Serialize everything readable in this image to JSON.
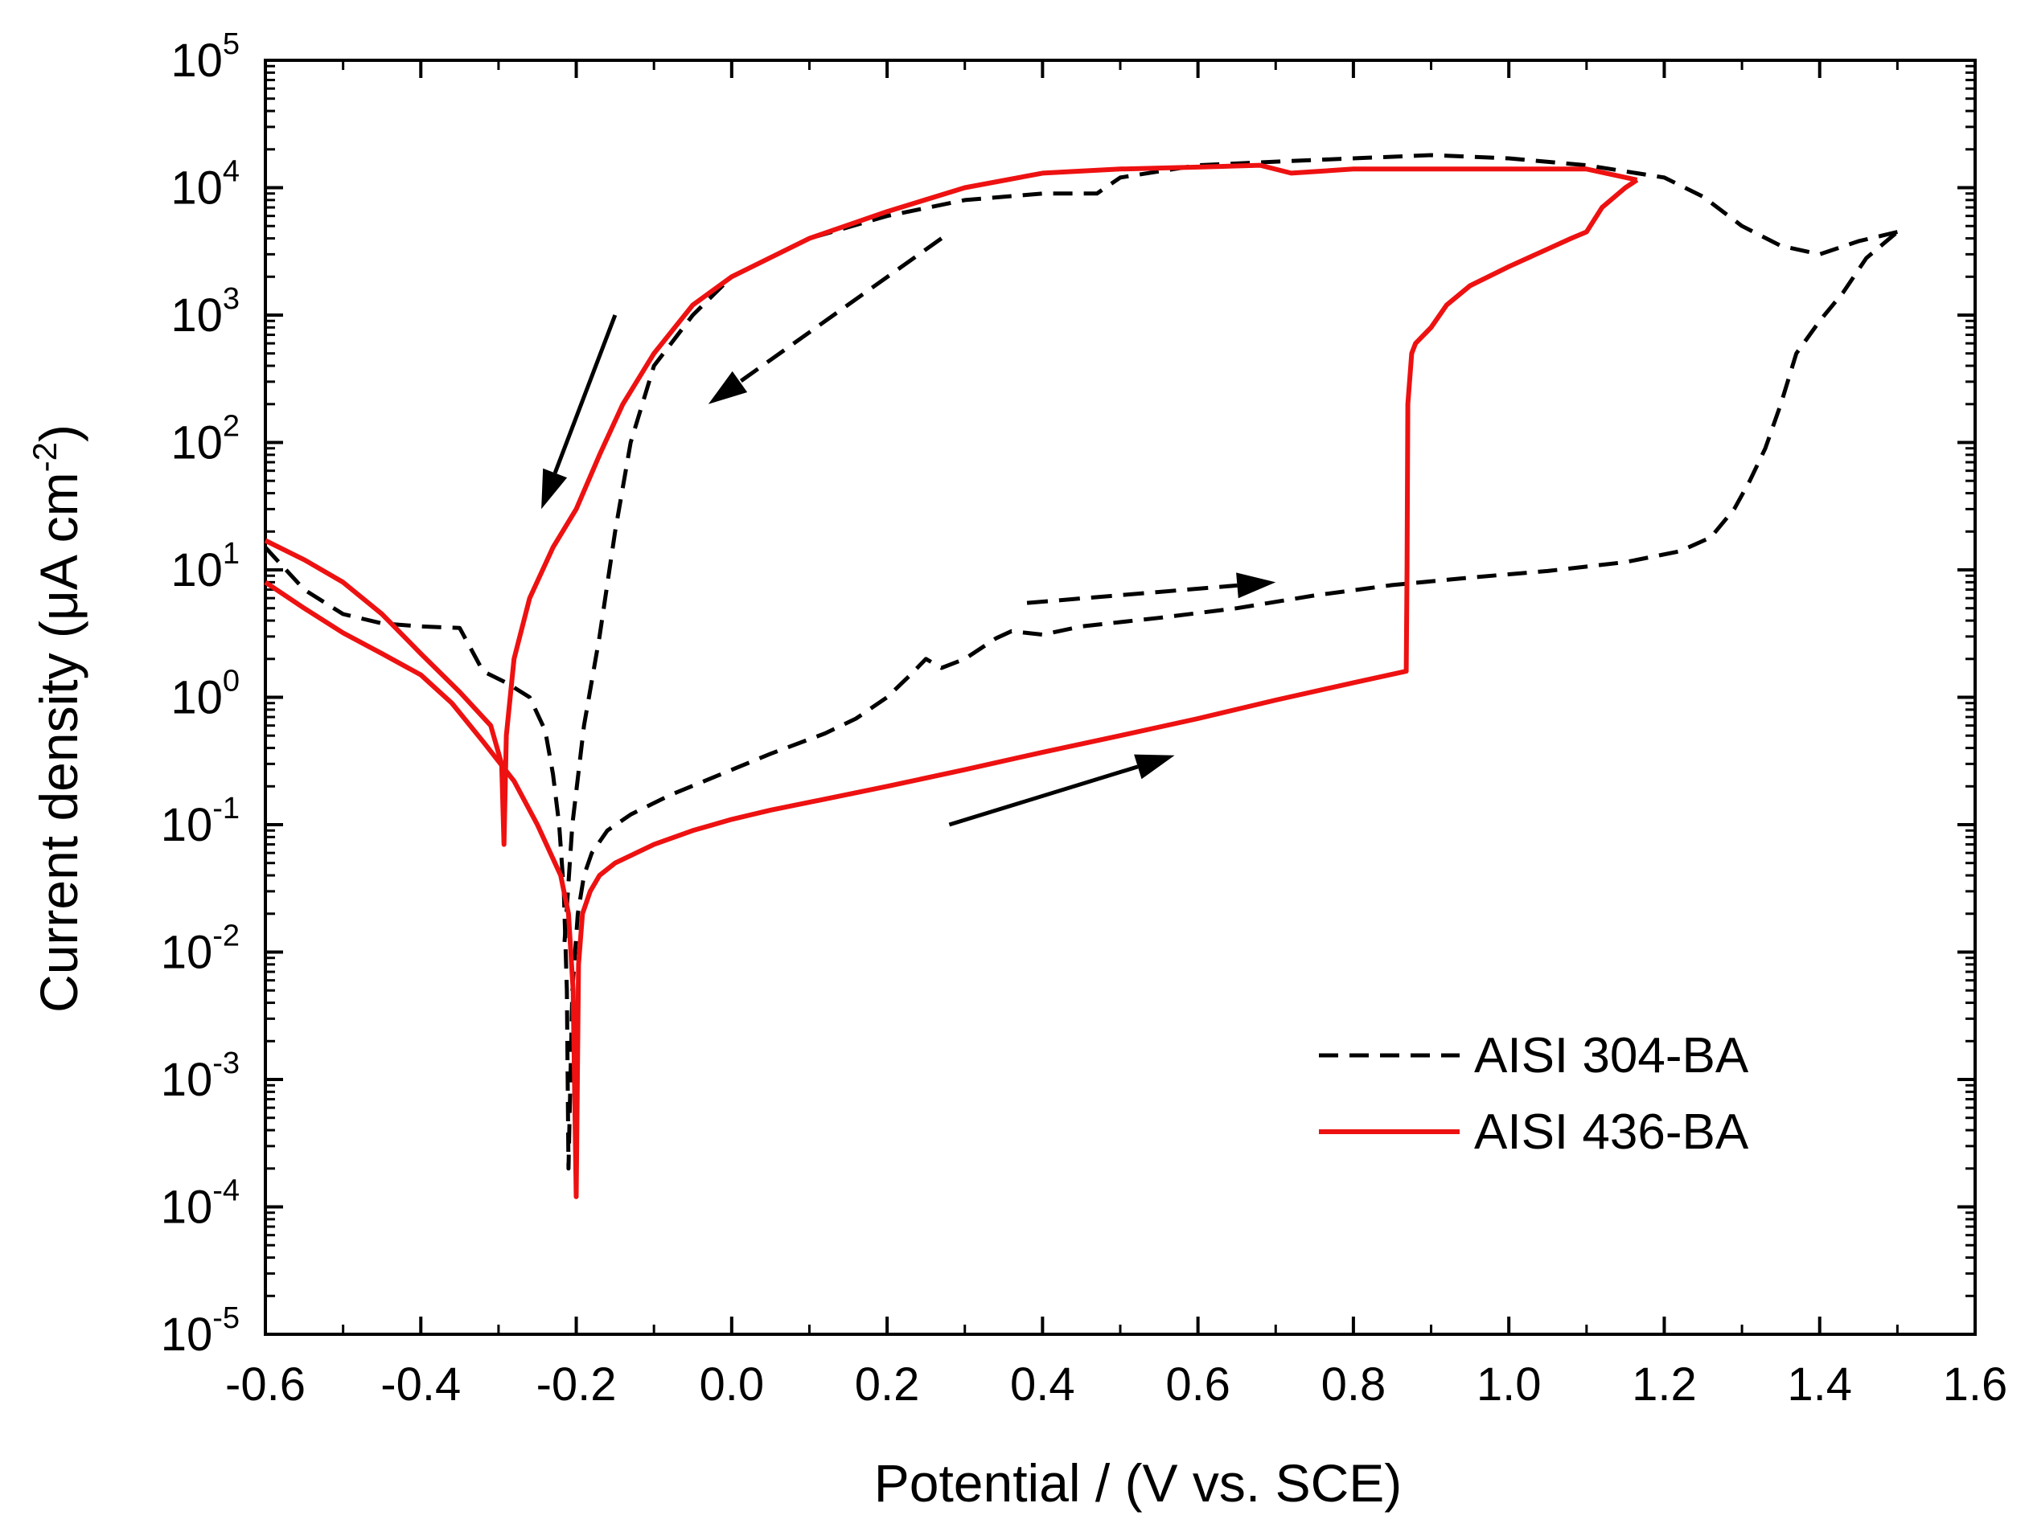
{
  "chart_data": {
    "type": "line",
    "title": "",
    "xlabel": "Potential / (V vs. SCE)",
    "ylabel": "Current density (μA cm",
    "ylabel_sup": "-2",
    "ylabel_close": ")",
    "xlim": [
      -0.6,
      1.6
    ],
    "ylim_log10": [
      -5,
      5
    ],
    "yscale": "log",
    "grid": false,
    "legend_position": "bottom-right",
    "x_ticks": [
      {
        "value": -0.6,
        "label": "-0.6"
      },
      {
        "value": -0.4,
        "label": "-0.4"
      },
      {
        "value": -0.2,
        "label": "-0.2"
      },
      {
        "value": 0.0,
        "label": "0.0"
      },
      {
        "value": 0.2,
        "label": "0.2"
      },
      {
        "value": 0.4,
        "label": "0.4"
      },
      {
        "value": 0.6,
        "label": "0.6"
      },
      {
        "value": 0.8,
        "label": "0.8"
      },
      {
        "value": 1.0,
        "label": "1.0"
      },
      {
        "value": 1.2,
        "label": "1.2"
      },
      {
        "value": 1.4,
        "label": "1.4"
      },
      {
        "value": 1.6,
        "label": "1.6"
      }
    ],
    "y_ticks": [
      {
        "exp": 5,
        "base": "10",
        "sup": "5"
      },
      {
        "exp": 4,
        "base": "10",
        "sup": "4"
      },
      {
        "exp": 3,
        "base": "10",
        "sup": "3"
      },
      {
        "exp": 2,
        "base": "10",
        "sup": "2"
      },
      {
        "exp": 1,
        "base": "10",
        "sup": "1"
      },
      {
        "exp": 0,
        "base": "10",
        "sup": "0"
      },
      {
        "exp": -1,
        "base": "10",
        "sup": "-1"
      },
      {
        "exp": -2,
        "base": "10",
        "sup": "-2"
      },
      {
        "exp": -3,
        "base": "10",
        "sup": "-3"
      },
      {
        "exp": -4,
        "base": "10",
        "sup": "-4"
      },
      {
        "exp": -5,
        "base": "10",
        "sup": "-5"
      }
    ],
    "series": [
      {
        "name": "AISI 304-BA",
        "color": "#000000",
        "style": "dashed",
        "forward": [
          [
            -0.6,
            15
          ],
          [
            -0.55,
            7
          ],
          [
            -0.5,
            4.5
          ],
          [
            -0.45,
            3.8
          ],
          [
            -0.4,
            3.6
          ],
          [
            -0.35,
            3.5
          ],
          [
            -0.32,
            1.6
          ],
          [
            -0.29,
            1.3
          ],
          [
            -0.26,
            1.0
          ],
          [
            -0.24,
            0.55
          ],
          [
            -0.23,
            0.25
          ],
          [
            -0.222,
            0.1
          ],
          [
            -0.216,
            0.03
          ],
          [
            -0.212,
            0.005
          ],
          [
            -0.21,
            0.0002
          ],
          [
            -0.205,
            0.005
          ],
          [
            -0.198,
            0.02
          ],
          [
            -0.19,
            0.04
          ],
          [
            -0.18,
            0.06
          ],
          [
            -0.16,
            0.09
          ],
          [
            -0.13,
            0.12
          ],
          [
            -0.08,
            0.17
          ],
          [
            -0.02,
            0.24
          ],
          [
            0.05,
            0.36
          ],
          [
            0.12,
            0.52
          ],
          [
            0.16,
            0.68
          ],
          [
            0.2,
            1.0
          ],
          [
            0.23,
            1.5
          ],
          [
            0.25,
            2.0
          ],
          [
            0.27,
            1.7
          ],
          [
            0.3,
            2.0
          ],
          [
            0.34,
            2.9
          ],
          [
            0.36,
            3.3
          ],
          [
            0.4,
            3.1
          ],
          [
            0.45,
            3.6
          ],
          [
            0.55,
            4.2
          ],
          [
            0.65,
            5.0
          ],
          [
            0.75,
            6.3
          ],
          [
            0.85,
            7.6
          ],
          [
            0.95,
            8.7
          ],
          [
            1.05,
            9.8
          ],
          [
            1.15,
            11.5
          ],
          [
            1.22,
            14
          ],
          [
            1.26,
            18
          ],
          [
            1.29,
            30
          ],
          [
            1.31,
            50
          ],
          [
            1.33,
            90
          ],
          [
            1.35,
            200
          ],
          [
            1.37,
            500
          ],
          [
            1.4,
            900
          ],
          [
            1.43,
            1500
          ],
          [
            1.46,
            2800
          ],
          [
            1.5,
            4500
          ]
        ],
        "reverse": [
          [
            1.5,
            4500
          ],
          [
            1.48,
            4200
          ],
          [
            1.45,
            3800
          ],
          [
            1.4,
            3000
          ],
          [
            1.35,
            3500
          ],
          [
            1.3,
            5000
          ],
          [
            1.25,
            8500
          ],
          [
            1.2,
            12000
          ],
          [
            1.1,
            15000
          ],
          [
            1.0,
            17000
          ],
          [
            0.9,
            18000
          ],
          [
            0.8,
            17000
          ],
          [
            0.7,
            16000
          ],
          [
            0.6,
            15000
          ],
          [
            0.5,
            12000
          ],
          [
            0.47,
            9000
          ],
          [
            0.4,
            9000
          ],
          [
            0.3,
            8000
          ],
          [
            0.2,
            6000
          ],
          [
            0.1,
            4000
          ],
          [
            0.0,
            2000
          ],
          [
            -0.05,
            1000
          ],
          [
            -0.1,
            400
          ],
          [
            -0.13,
            100
          ],
          [
            -0.15,
            20
          ],
          [
            -0.17,
            3
          ],
          [
            -0.19,
            0.6
          ],
          [
            -0.205,
            0.1
          ],
          [
            -0.215,
            0.012
          ]
        ]
      },
      {
        "name": "AISI 436-BA",
        "color": "#ee1111",
        "style": "solid",
        "forward": [
          [
            -0.6,
            8
          ],
          [
            -0.55,
            5
          ],
          [
            -0.5,
            3.2
          ],
          [
            -0.45,
            2.2
          ],
          [
            -0.4,
            1.5
          ],
          [
            -0.36,
            0.9
          ],
          [
            -0.32,
            0.45
          ],
          [
            -0.28,
            0.22
          ],
          [
            -0.25,
            0.1
          ],
          [
            -0.22,
            0.04
          ],
          [
            -0.21,
            0.02
          ],
          [
            -0.204,
            0.005
          ],
          [
            -0.2,
            0.00012
          ],
          [
            -0.197,
            0.008
          ],
          [
            -0.192,
            0.02
          ],
          [
            -0.182,
            0.03
          ],
          [
            -0.17,
            0.04
          ],
          [
            -0.15,
            0.05
          ],
          [
            -0.1,
            0.07
          ],
          [
            -0.05,
            0.09
          ],
          [
            0.0,
            0.11
          ],
          [
            0.05,
            0.13
          ],
          [
            0.1,
            0.15
          ],
          [
            0.2,
            0.2
          ],
          [
            0.3,
            0.27
          ],
          [
            0.4,
            0.37
          ],
          [
            0.5,
            0.5
          ],
          [
            0.6,
            0.68
          ],
          [
            0.7,
            0.95
          ],
          [
            0.8,
            1.3
          ],
          [
            0.868,
            1.6
          ],
          [
            0.869,
            10
          ],
          [
            0.87,
            200
          ],
          [
            0.875,
            500
          ],
          [
            0.88,
            600
          ],
          [
            0.9,
            800
          ],
          [
            0.92,
            1200
          ],
          [
            0.95,
            1700
          ],
          [
            1.0,
            2400
          ],
          [
            1.05,
            3300
          ],
          [
            1.08,
            4000
          ],
          [
            1.1,
            4500
          ],
          [
            1.12,
            7000
          ],
          [
            1.15,
            10000
          ],
          [
            1.165,
            11500
          ]
        ],
        "reverse": [
          [
            1.165,
            11500
          ],
          [
            1.1,
            14000
          ],
          [
            1.0,
            14000
          ],
          [
            0.9,
            14000
          ],
          [
            0.8,
            14000
          ],
          [
            0.72,
            13000
          ],
          [
            0.68,
            15000
          ],
          [
            0.6,
            14500
          ],
          [
            0.5,
            14000
          ],
          [
            0.4,
            13000
          ],
          [
            0.3,
            10000
          ],
          [
            0.2,
            6500
          ],
          [
            0.1,
            4000
          ],
          [
            0.0,
            2000
          ],
          [
            -0.05,
            1200
          ],
          [
            -0.1,
            500
          ],
          [
            -0.14,
            200
          ],
          [
            -0.17,
            80
          ],
          [
            -0.2,
            30
          ],
          [
            -0.23,
            15
          ],
          [
            -0.26,
            6
          ],
          [
            -0.28,
            2
          ],
          [
            -0.29,
            0.5
          ],
          [
            -0.293,
            0.07
          ],
          [
            -0.296,
            0.3
          ],
          [
            -0.31,
            0.6
          ],
          [
            -0.35,
            1.1
          ],
          [
            -0.4,
            2.2
          ],
          [
            -0.45,
            4.5
          ],
          [
            -0.5,
            8
          ],
          [
            -0.55,
            12
          ],
          [
            -0.6,
            17
          ]
        ]
      }
    ],
    "arrows": [
      {
        "name": "arrow-1",
        "from": [
          -0.15,
          1000
        ],
        "to": [
          -0.245,
          30
        ],
        "style": "solid"
      },
      {
        "name": "arrow-2",
        "from": [
          0.27,
          4000
        ],
        "to": [
          -0.03,
          200
        ],
        "style": "dashed"
      },
      {
        "name": "arrow-3",
        "from": [
          0.38,
          5.5
        ],
        "to": [
          0.7,
          8
        ],
        "style": "dashed"
      },
      {
        "name": "arrow-4",
        "from": [
          0.28,
          0.1
        ],
        "to": [
          0.57,
          0.35
        ],
        "style": "solid"
      }
    ]
  }
}
